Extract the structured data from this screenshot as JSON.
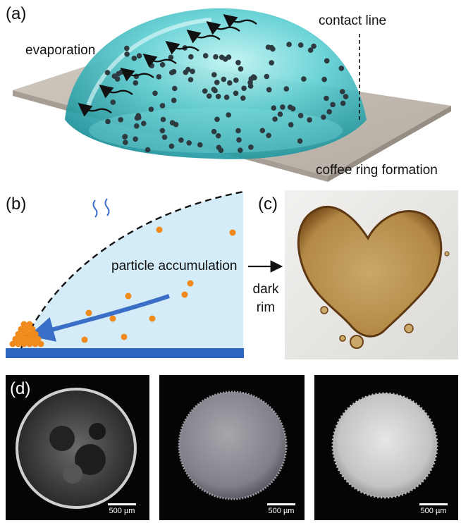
{
  "panel_a": {
    "label": "(a)",
    "evaporation": "evaporation",
    "contact_line": "contact line",
    "coffee_ring": "coffee ring formation"
  },
  "panel_b": {
    "label": "(b)",
    "particle_accumulation": "particle accumulation",
    "dark_rim": "dark rim"
  },
  "panel_c": {
    "label": "(c)"
  },
  "panel_d": {
    "label": "(d)",
    "scale_labels": [
      "500 µm",
      "500 µm",
      "500 µm"
    ]
  },
  "colors": {
    "droplet": "#4fc3c8",
    "substrate": "#bfb7ad",
    "particle_a": "#2d3b40",
    "particle_b": "#f08a1c",
    "liquid_b": "#cfe8f6",
    "stain": "#b8904a"
  }
}
